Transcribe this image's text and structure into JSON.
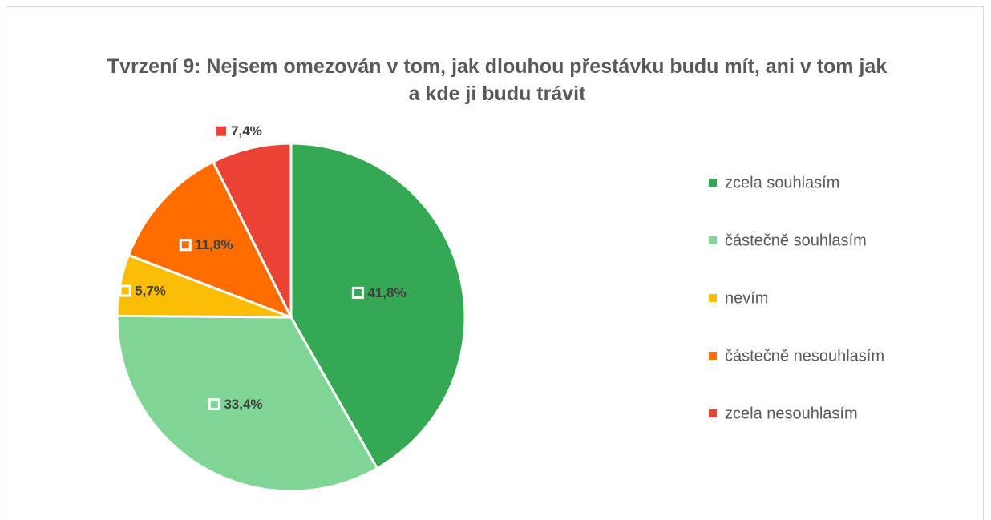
{
  "chart_data": {
    "type": "pie",
    "title": "Tvrzení 9: Nejsem omezován v tom, jak dlouhou přestávku budu mít, ani v tom jak a kde ji budu trávit",
    "categories": [
      "zcela souhlasím",
      "částečně souhlasím",
      "nevím",
      "částečně nesouhlasím",
      "zcela nesouhlasím"
    ],
    "values": [
      41.8,
      33.4,
      5.7,
      11.8,
      7.4
    ],
    "value_labels": [
      "41,8%",
      "33,4%",
      "5,7%",
      "11,8%",
      "7,4%"
    ],
    "colors": [
      "#34a853",
      "#7fd694",
      "#fbbc04",
      "#ff6d01",
      "#ea4335"
    ],
    "legend": "right"
  }
}
